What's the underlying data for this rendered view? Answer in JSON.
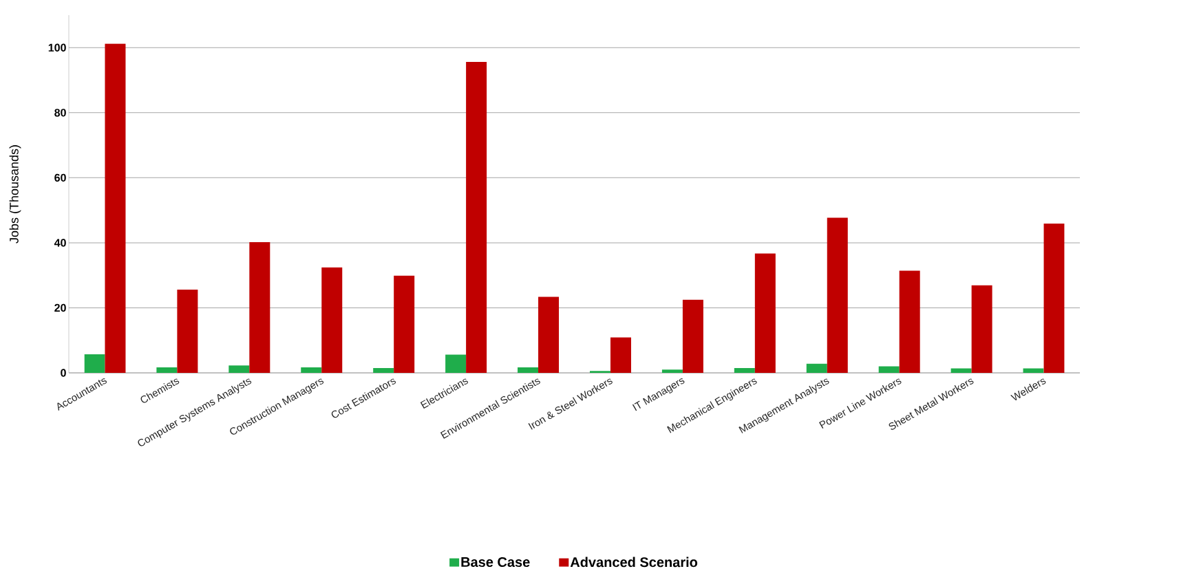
{
  "chart_data": {
    "type": "bar",
    "ylabel": "Jobs (Thousands)",
    "categories": [
      "Accountants",
      "Chemists",
      "Computer Systems Analysts",
      "Construction Managers",
      "Cost Estimators",
      "Electricians",
      "Environmental Scientists",
      "Iron & Steel Workers",
      "IT Managers",
      "Mechanical Engineers",
      "Management Analysts",
      "Power Line Workers",
      "Sheet Metal Workers",
      "Welders"
    ],
    "series": [
      {
        "name": "Base Case",
        "color": "#1fad4b",
        "values": [
          5.7,
          1.7,
          2.3,
          1.7,
          1.5,
          5.6,
          1.7,
          0.6,
          1.0,
          1.5,
          2.8,
          2.0,
          1.4,
          1.4
        ]
      },
      {
        "name": "Advanced Scenario",
        "color": "#c00000",
        "values": [
          101.2,
          25.6,
          40.2,
          32.4,
          29.9,
          95.6,
          23.4,
          10.9,
          22.5,
          36.7,
          47.7,
          31.4,
          26.9,
          45.9
        ]
      }
    ],
    "ylim": [
      0,
      110
    ],
    "yticks": [
      0,
      20,
      40,
      60,
      80,
      100
    ],
    "grid": "y",
    "legend": "bottom"
  }
}
